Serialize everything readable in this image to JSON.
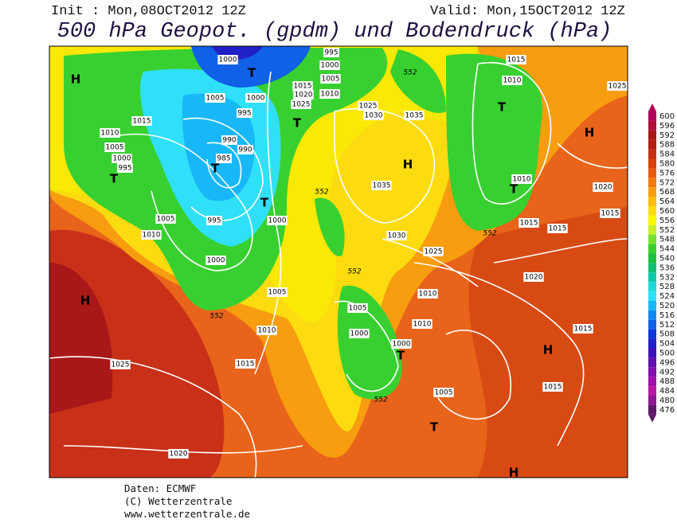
{
  "header": {
    "init": "Init : Mon,08OCT2012 12Z",
    "valid": "Valid: Mon,15OCT2012 12Z",
    "title": "500 hPa Geopot. (gpdm) und Bodendruck (hPa)"
  },
  "map": {
    "labels": [
      "H",
      1000,
      995,
      1000,
      1005,
      "T",
      1015,
      1010,
      "T",
      1025,
      1005,
      1000,
      1015,
      1020,
      1010,
      1025,
      1025,
      1030,
      1035,
      995,
      "T",
      1015,
      1010,
      990,
      990,
      985,
      "T",
      1005,
      1000,
      995,
      "T",
      "H",
      "H",
      1010,
      "T",
      1020,
      552,
      1035,
      "T",
      995,
      1000,
      1005,
      1010,
      1015,
      1015,
      1015,
      552,
      1030,
      1025,
      1000,
      552,
      1020,
      1005,
      1010,
      "H",
      552,
      1005,
      1010,
      1010,
      1000,
      1015,
      1000,
      "T",
      "H",
      1015,
      1025,
      1015,
      1005,
      552,
      "T",
      1020,
      "H",
      552
    ]
  },
  "colorbar": {
    "values": [
      600,
      596,
      592,
      588,
      584,
      580,
      576,
      572,
      568,
      564,
      560,
      556,
      552,
      548,
      544,
      540,
      536,
      532,
      528,
      524,
      520,
      516,
      512,
      508,
      504,
      500,
      496,
      492,
      488,
      484,
      480,
      476
    ],
    "colors": [
      "#b0005a",
      "#b01038",
      "#a81818",
      "#b42014",
      "#c43014",
      "#d84010",
      "#e65a10",
      "#f07a10",
      "#f89c10",
      "#fcbc10",
      "#fcdc10",
      "#f8f800",
      "#c8f028",
      "#78e030",
      "#38d030",
      "#20c040",
      "#10c070",
      "#10c8a8",
      "#20d8d8",
      "#30e0f8",
      "#18b8f8",
      "#1088f0",
      "#1060e8",
      "#1038d8",
      "#2020c8",
      "#4010b8",
      "#6010b0",
      "#8010b0",
      "#a010a8",
      "#b818a0",
      "#901890",
      "#601868"
    ]
  },
  "footer": {
    "lines": [
      "Daten: ECMWF",
      "(C) Wetterzentrale",
      "www.wetterzentrale.de"
    ]
  }
}
